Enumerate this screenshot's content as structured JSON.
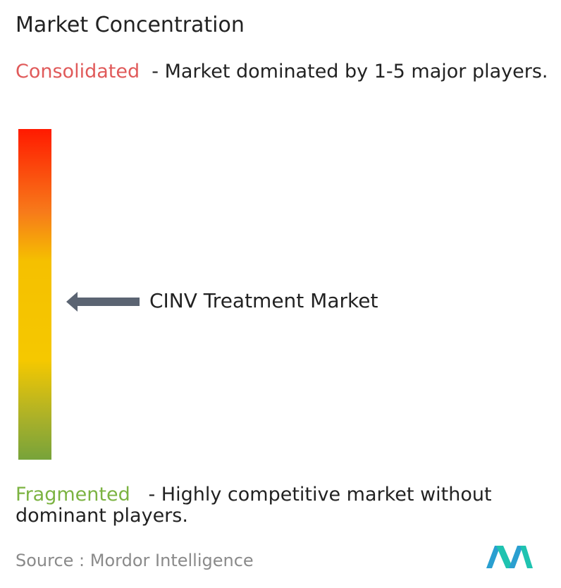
{
  "title": "Market Concentration",
  "consolidated": {
    "label": "Consolidated",
    "description": "- Market dominated by 1-5 major players."
  },
  "marker": {
    "label": "CINV Treatment Market"
  },
  "fragmented": {
    "label": "Fragmented",
    "description": "- Highly competitive market without dominant players."
  },
  "source": "Source : Mordor Intelligence"
}
